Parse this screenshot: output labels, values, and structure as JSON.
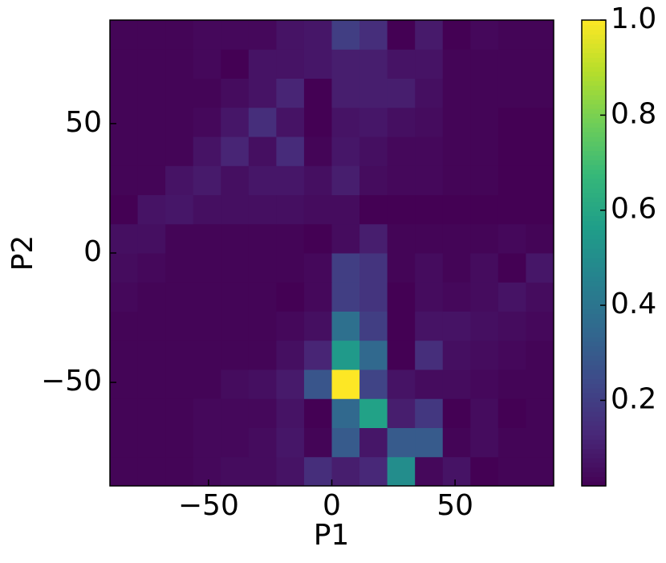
{
  "chart_data": {
    "type": "heatmap",
    "xlabel": "P1",
    "ylabel": "P2",
    "colormap": "viridis",
    "xbins": [
      -90,
      -78.75,
      -67.5,
      -56.25,
      -45,
      -33.75,
      -22.5,
      -11.25,
      0,
      11.25,
      22.5,
      33.75,
      45,
      56.25,
      67.5,
      78.75,
      90
    ],
    "ybins": [
      -90,
      -78.75,
      -67.5,
      -56.25,
      -45,
      -33.75,
      -22.5,
      -11.25,
      0,
      11.25,
      22.5,
      33.75,
      45,
      56.25,
      67.5,
      78.75,
      90
    ],
    "values": [
      [
        0.03,
        0.03,
        0.03,
        0.04,
        0.05,
        0.05,
        0.07,
        0.15,
        0.1,
        0.13,
        0.5,
        0.04,
        0.07,
        0.02,
        0.03,
        0.03
      ],
      [
        0.03,
        0.03,
        0.03,
        0.04,
        0.04,
        0.05,
        0.08,
        0.03,
        0.3,
        0.08,
        0.3,
        0.3,
        0.03,
        0.05,
        0.03,
        0.03
      ],
      [
        0.03,
        0.03,
        0.03,
        0.04,
        0.04,
        0.04,
        0.07,
        0.02,
        0.35,
        0.58,
        0.1,
        0.18,
        0.02,
        0.05,
        0.02,
        0.03
      ],
      [
        0.03,
        0.03,
        0.03,
        0.03,
        0.05,
        0.06,
        0.09,
        0.28,
        1.0,
        0.22,
        0.07,
        0.05,
        0.05,
        0.04,
        0.03,
        0.03
      ],
      [
        0.03,
        0.03,
        0.03,
        0.03,
        0.03,
        0.03,
        0.06,
        0.12,
        0.55,
        0.35,
        0.02,
        0.15,
        0.06,
        0.05,
        0.04,
        0.03
      ],
      [
        0.03,
        0.03,
        0.03,
        0.03,
        0.03,
        0.03,
        0.04,
        0.06,
        0.38,
        0.2,
        0.02,
        0.07,
        0.07,
        0.06,
        0.05,
        0.04
      ],
      [
        0.04,
        0.03,
        0.03,
        0.03,
        0.03,
        0.03,
        0.02,
        0.04,
        0.2,
        0.17,
        0.02,
        0.05,
        0.04,
        0.05,
        0.07,
        0.05
      ],
      [
        0.05,
        0.04,
        0.03,
        0.03,
        0.03,
        0.03,
        0.03,
        0.04,
        0.2,
        0.17,
        0.03,
        0.05,
        0.03,
        0.05,
        0.02,
        0.08
      ],
      [
        0.06,
        0.06,
        0.03,
        0.03,
        0.03,
        0.03,
        0.03,
        0.02,
        0.05,
        0.1,
        0.03,
        0.03,
        0.03,
        0.03,
        0.04,
        0.03
      ],
      [
        0.02,
        0.07,
        0.08,
        0.06,
        0.06,
        0.06,
        0.06,
        0.05,
        0.05,
        0.02,
        0.02,
        0.02,
        0.02,
        0.02,
        0.02,
        0.02
      ],
      [
        0.03,
        0.03,
        0.07,
        0.09,
        0.06,
        0.08,
        0.08,
        0.06,
        0.1,
        0.05,
        0.04,
        0.04,
        0.03,
        0.03,
        0.02,
        0.02
      ],
      [
        0.03,
        0.03,
        0.03,
        0.07,
        0.12,
        0.06,
        0.14,
        0.03,
        0.08,
        0.06,
        0.04,
        0.04,
        0.03,
        0.03,
        0.02,
        0.02
      ],
      [
        0.03,
        0.03,
        0.03,
        0.04,
        0.08,
        0.15,
        0.07,
        0.02,
        0.07,
        0.08,
        0.06,
        0.05,
        0.03,
        0.03,
        0.02,
        0.02
      ],
      [
        0.03,
        0.03,
        0.03,
        0.03,
        0.05,
        0.07,
        0.12,
        0.02,
        0.1,
        0.1,
        0.1,
        0.06,
        0.03,
        0.03,
        0.03,
        0.03
      ],
      [
        0.03,
        0.03,
        0.03,
        0.04,
        0.02,
        0.07,
        0.07,
        0.08,
        0.1,
        0.1,
        0.07,
        0.07,
        0.03,
        0.03,
        0.03,
        0.03
      ],
      [
        0.03,
        0.03,
        0.03,
        0.04,
        0.04,
        0.04,
        0.07,
        0.08,
        0.2,
        0.15,
        0.02,
        0.09,
        0.02,
        0.04,
        0.03,
        0.03
      ]
    ],
    "xlim": [
      -90,
      90
    ],
    "ylim": [
      -90,
      90
    ],
    "xticks": [
      {
        "value": -50,
        "label": "−50"
      },
      0,
      50
    ],
    "yticks": [
      {
        "value": -50,
        "label": "−50"
      },
      0,
      50
    ],
    "colorbar": {
      "lim": [
        0.02,
        1
      ],
      "ticks": [
        0.2,
        0.4,
        0.6,
        0.8,
        {
          "value": 1,
          "label": "1.0"
        }
      ]
    }
  }
}
